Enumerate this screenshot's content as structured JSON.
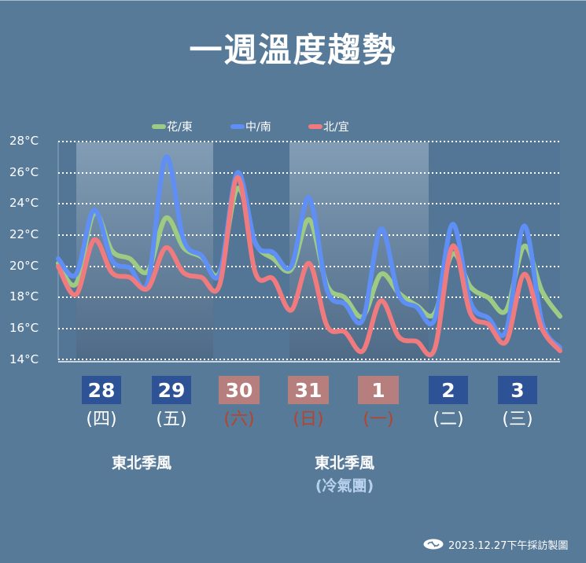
{
  "title": "一週溫度趨勢",
  "legend": [
    {
      "label": "花/東",
      "color": "#9dcb83"
    },
    {
      "label": "中/南",
      "color": "#5f8ff5"
    },
    {
      "label": "北/宜",
      "color": "#f07b7e"
    }
  ],
  "y_axis": {
    "ticks": [
      "28°C",
      "26°C",
      "24°C",
      "22°C",
      "20°C",
      "18°C",
      "16°C",
      "14°C"
    ]
  },
  "dates": [
    {
      "day": "28",
      "weekday": "(四)",
      "weekend": false
    },
    {
      "day": "29",
      "weekday": "(五)",
      "weekend": false
    },
    {
      "day": "30",
      "weekday": "(六)",
      "weekend": true
    },
    {
      "day": "31",
      "weekday": "(日)",
      "weekend": true
    },
    {
      "day": "1",
      "weekday": "(一)",
      "weekend": true
    },
    {
      "day": "2",
      "weekday": "(二)",
      "weekend": false
    },
    {
      "day": "3",
      "weekday": "(三)",
      "weekend": false
    }
  ],
  "notes": {
    "monsoon_1": "東北季風",
    "monsoon_2": "東北季風",
    "monsoon_2_sub": "(冷氣團)"
  },
  "footer": {
    "text": "2023.12.27下午採訪製圖"
  },
  "colors": {
    "background": "#577a99",
    "weekday_box": "#2d5296",
    "weekend_box": "#b77e7e",
    "weekend_text": "#b8432a",
    "green": "#9dcb83",
    "blue": "#5f8ff5",
    "red": "#f07b7e"
  },
  "chart_data": {
    "type": "line",
    "title": "一週溫度趨勢",
    "xlabel": "",
    "ylabel": "",
    "ylim": [
      14,
      28
    ],
    "grid": true,
    "legend_position": "top",
    "categories": [
      "28(四)",
      "29(五)",
      "30(六)",
      "31(日)",
      "1(一)",
      "2(二)",
      "3(三)"
    ],
    "note": "Three-hourly temperature trend; x values are fractional day index from 0 (start of 28th) to 7 (end of 3rd)",
    "x": [
      0.0,
      0.25,
      0.5,
      0.75,
      1.0,
      1.25,
      1.5,
      1.75,
      2.0,
      2.25,
      2.5,
      2.75,
      3.0,
      3.25,
      3.5,
      3.75,
      4.0,
      4.25,
      4.5,
      4.75,
      5.0,
      5.25,
      5.5,
      5.75,
      6.0,
      6.25,
      6.5,
      6.75,
      7.0
    ],
    "series": [
      {
        "name": "花/東",
        "color": "#9dcb83",
        "values": [
          20.2,
          18.9,
          23.4,
          21.0,
          20.5,
          19.7,
          23.1,
          21.2,
          20.6,
          19.6,
          25.0,
          21.5,
          20.5,
          19.8,
          23.0,
          18.8,
          18.0,
          16.8,
          19.5,
          18.3,
          17.5,
          17.0,
          20.8,
          18.7,
          18.0,
          17.2,
          21.3,
          18.4,
          16.8
        ]
      },
      {
        "name": "中/南",
        "color": "#5f8ff5",
        "values": [
          20.5,
          19.5,
          23.6,
          20.4,
          19.9,
          19.0,
          27.0,
          21.7,
          20.7,
          19.5,
          26.0,
          21.5,
          20.9,
          20.0,
          24.4,
          18.5,
          17.6,
          16.6,
          22.4,
          18.2,
          17.4,
          16.6,
          22.7,
          17.7,
          16.7,
          15.9,
          22.6,
          16.4,
          14.8
        ]
      },
      {
        "name": "北/宜",
        "color": "#f07b7e",
        "values": [
          20.0,
          18.2,
          21.7,
          19.6,
          19.3,
          18.6,
          21.2,
          19.6,
          19.3,
          18.8,
          25.7,
          19.6,
          19.2,
          17.2,
          20.2,
          16.2,
          15.8,
          14.6,
          17.8,
          15.5,
          15.2,
          14.7,
          21.3,
          17.0,
          16.3,
          15.2,
          19.5,
          16.0,
          14.6
        ]
      }
    ],
    "shaded_regions": [
      [
        0.25,
        2.25
      ],
      [
        3.35,
        5.35
      ]
    ],
    "annotations": [
      "東北季風",
      "東北季風 (冷氣團)"
    ]
  }
}
